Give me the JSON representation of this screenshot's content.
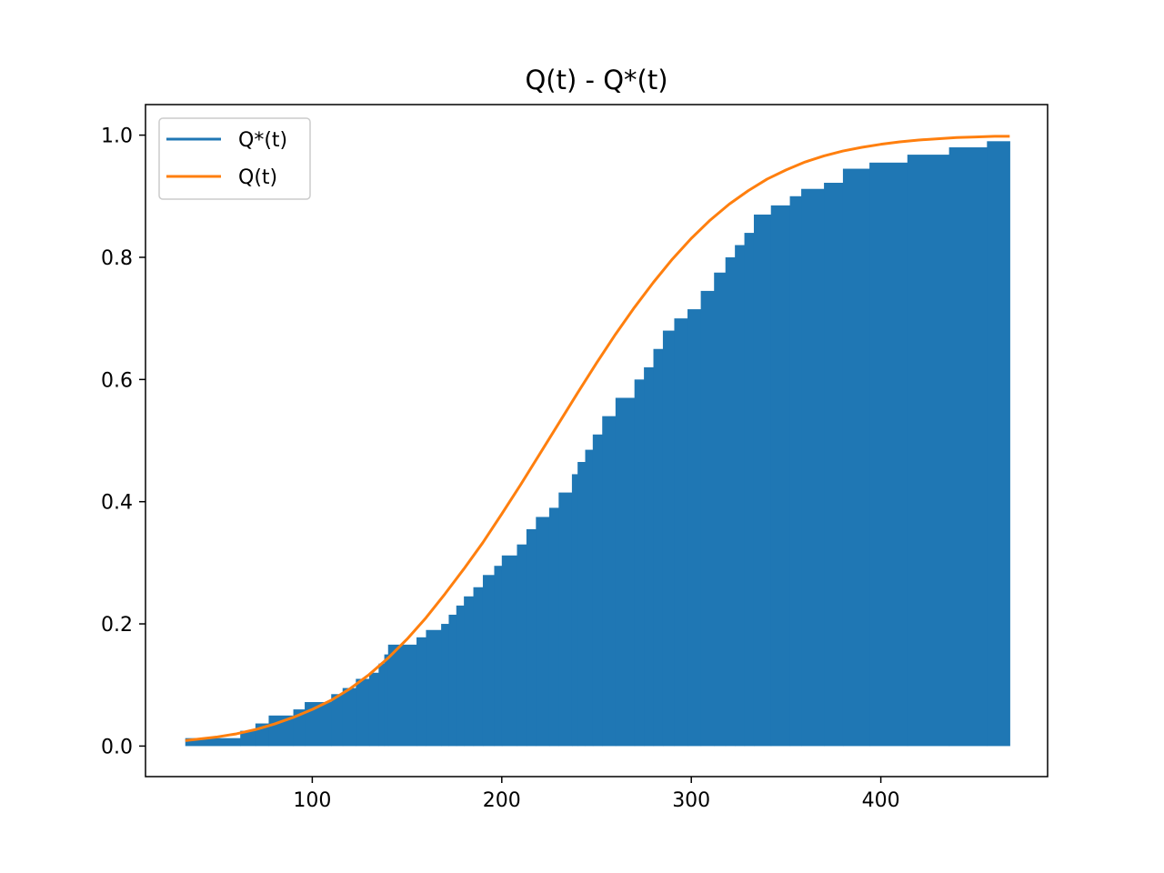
{
  "chart_data": {
    "type": "area",
    "title": "Q(t) - Q*(t)",
    "xlabel": "",
    "ylabel": "",
    "xlim": [
      12,
      488
    ],
    "ylim": [
      -0.05,
      1.05
    ],
    "xticks": [
      100,
      200,
      300,
      400
    ],
    "yticks": [
      0.0,
      0.2,
      0.4,
      0.6,
      0.8,
      1.0
    ],
    "xtick_labels": [
      "100",
      "200",
      "300",
      "400"
    ],
    "ytick_labels": [
      "0.0",
      "0.2",
      "0.4",
      "0.6",
      "0.8",
      "1.0"
    ],
    "legend_position": "upper-left",
    "series": [
      {
        "name": "Q*(t)",
        "kind": "step-filled",
        "color": "#1f77b4",
        "x": [
          33,
          62,
          70,
          77,
          90,
          96,
          110,
          116,
          123,
          130,
          135,
          138,
          140,
          155,
          160,
          168,
          172,
          176,
          180,
          185,
          190,
          196,
          200,
          208,
          213,
          218,
          225,
          230,
          237,
          240,
          244,
          248,
          253,
          260,
          270,
          275,
          280,
          285,
          291,
          298,
          305,
          312,
          318,
          323,
          328,
          333,
          342,
          352,
          358,
          370,
          380,
          394,
          414,
          436,
          456,
          468
        ],
        "y": [
          0.013,
          0.025,
          0.037,
          0.05,
          0.06,
          0.072,
          0.085,
          0.095,
          0.11,
          0.12,
          0.135,
          0.15,
          0.166,
          0.178,
          0.19,
          0.2,
          0.215,
          0.23,
          0.245,
          0.26,
          0.28,
          0.295,
          0.312,
          0.33,
          0.355,
          0.375,
          0.39,
          0.415,
          0.445,
          0.465,
          0.485,
          0.51,
          0.54,
          0.57,
          0.6,
          0.62,
          0.65,
          0.68,
          0.7,
          0.715,
          0.745,
          0.775,
          0.8,
          0.82,
          0.84,
          0.87,
          0.885,
          0.9,
          0.912,
          0.922,
          0.945,
          0.955,
          0.968,
          0.98,
          0.99,
          0.99
        ]
      },
      {
        "name": "Q(t)",
        "kind": "line",
        "color": "#ff7f0e",
        "x": [
          33,
          50,
          60,
          70,
          80,
          90,
          100,
          110,
          120,
          130,
          140,
          150,
          160,
          170,
          180,
          190,
          200,
          210,
          220,
          230,
          240,
          250,
          260,
          270,
          280,
          290,
          300,
          310,
          320,
          330,
          340,
          350,
          360,
          370,
          380,
          390,
          400,
          410,
          420,
          430,
          440,
          450,
          460,
          468
        ],
        "y": [
          0.009,
          0.015,
          0.02,
          0.027,
          0.036,
          0.047,
          0.06,
          0.075,
          0.094,
          0.117,
          0.144,
          0.175,
          0.21,
          0.249,
          0.29,
          0.333,
          0.38,
          0.428,
          0.478,
          0.528,
          0.578,
          0.627,
          0.674,
          0.718,
          0.759,
          0.797,
          0.831,
          0.861,
          0.887,
          0.909,
          0.928,
          0.943,
          0.956,
          0.966,
          0.974,
          0.98,
          0.985,
          0.989,
          0.992,
          0.994,
          0.996,
          0.997,
          0.998,
          0.998
        ]
      }
    ]
  }
}
